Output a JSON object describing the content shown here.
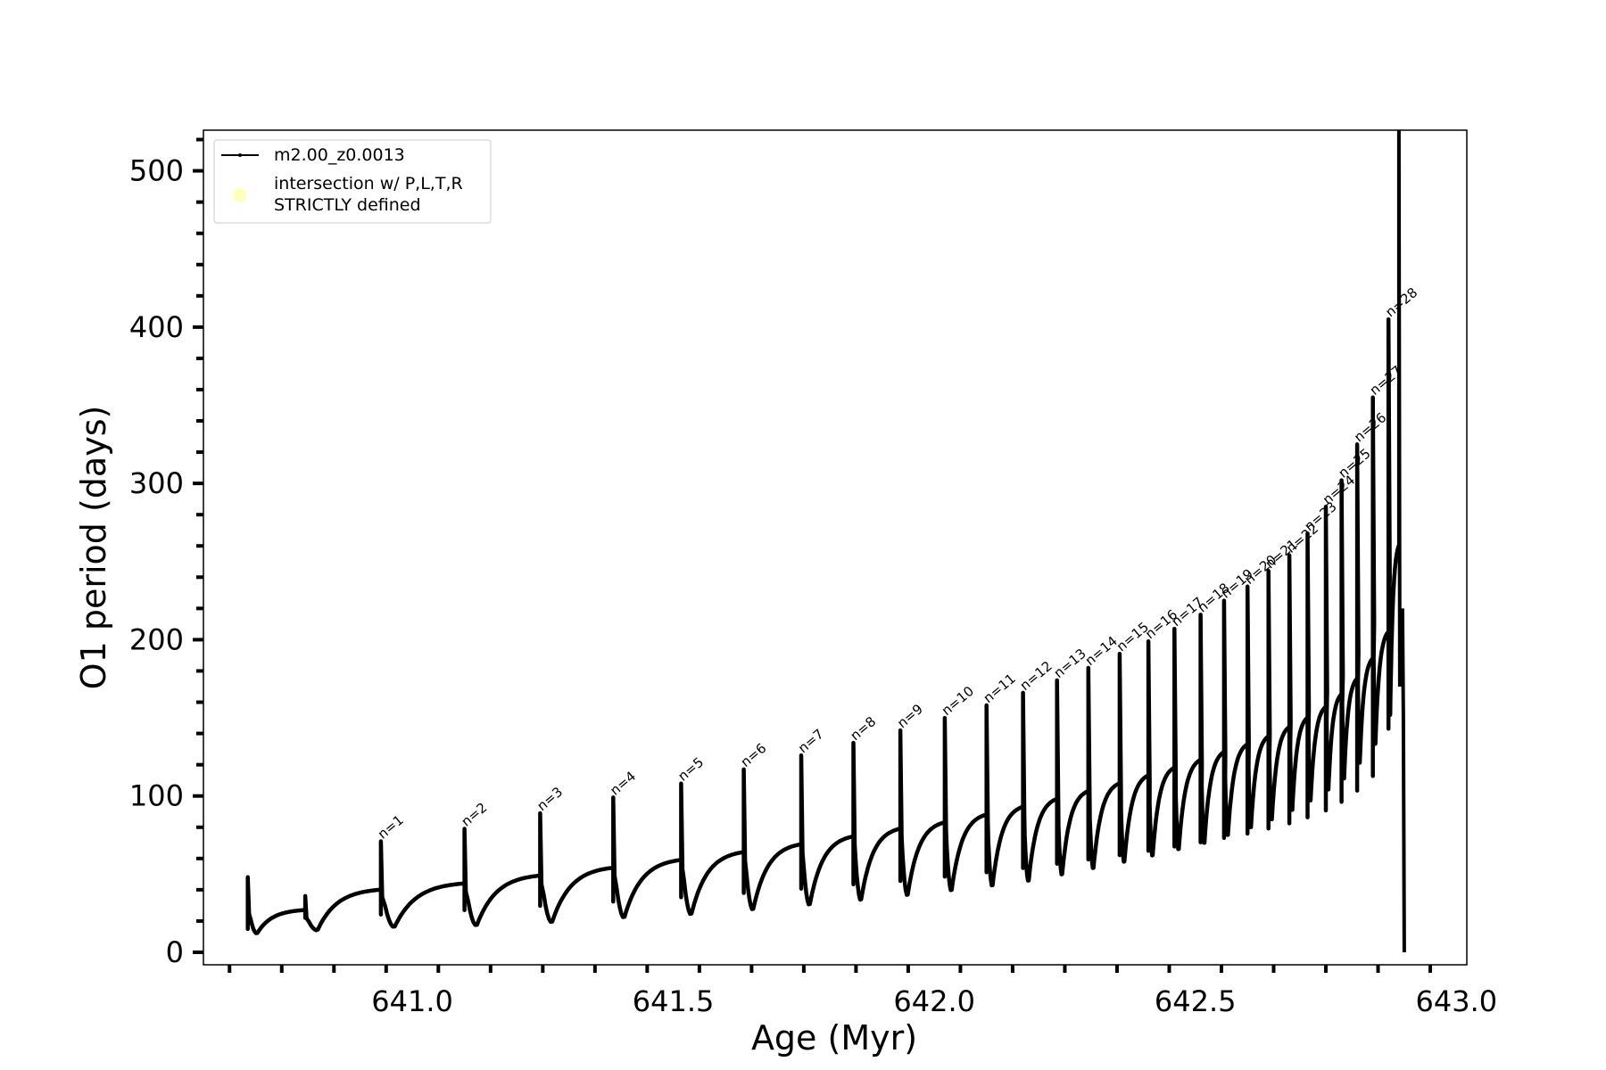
{
  "chart_data": {
    "type": "line",
    "xlabel": "Age (Myr)",
    "ylabel": "O1 period (days)",
    "xlim": [
      640.6,
      643.02
    ],
    "ylim": [
      -8,
      526
    ],
    "grid": false,
    "legend_position": "top-left",
    "x_ticks": [
      {
        "value": 641.0,
        "label": "641.0"
      },
      {
        "value": 641.5,
        "label": "641.5"
      },
      {
        "value": 642.0,
        "label": "642.0"
      },
      {
        "value": 642.5,
        "label": "642.5"
      },
      {
        "value": 643.0,
        "label": "643.0"
      }
    ],
    "y_ticks": [
      {
        "value": 0,
        "label": "0"
      },
      {
        "value": 100,
        "label": "100"
      },
      {
        "value": 200,
        "label": "200"
      },
      {
        "value": 300,
        "label": "300"
      },
      {
        "value": 400,
        "label": "400"
      },
      {
        "value": 500,
        "label": "500"
      }
    ],
    "series": [
      {
        "name": "m2.00_z0.0013",
        "color": "#000000",
        "pulses": [
          {
            "label": "",
            "x": 640.685,
            "peak": 48,
            "min": 12,
            "end": 27
          },
          {
            "label": "",
            "x": 640.795,
            "peak": 36,
            "min": 14,
            "end": 40
          },
          {
            "label": "n=1",
            "x": 640.94,
            "peak": 71,
            "min": 16,
            "end": 44
          },
          {
            "label": "n=2",
            "x": 641.1,
            "peak": 79,
            "min": 17,
            "end": 49
          },
          {
            "label": "n=3",
            "x": 641.245,
            "peak": 89,
            "min": 19,
            "end": 54
          },
          {
            "label": "n=4",
            "x": 641.385,
            "peak": 99,
            "min": 22,
            "end": 59
          },
          {
            "label": "n=5",
            "x": 641.515,
            "peak": 108,
            "min": 24,
            "end": 64
          },
          {
            "label": "n=6",
            "x": 641.635,
            "peak": 117,
            "min": 27,
            "end": 69
          },
          {
            "label": "n=7",
            "x": 641.745,
            "peak": 126,
            "min": 30,
            "end": 74
          },
          {
            "label": "n=8",
            "x": 641.845,
            "peak": 134,
            "min": 33,
            "end": 79
          },
          {
            "label": "n=9",
            "x": 641.935,
            "peak": 142,
            "min": 36,
            "end": 83
          },
          {
            "label": "n=10",
            "x": 642.02,
            "peak": 150,
            "min": 39,
            "end": 88
          },
          {
            "label": "n=11",
            "x": 642.1,
            "peak": 158,
            "min": 42,
            "end": 93
          },
          {
            "label": "n=12",
            "x": 642.17,
            "peak": 166,
            "min": 45,
            "end": 98
          },
          {
            "label": "n=13",
            "x": 642.235,
            "peak": 174,
            "min": 49,
            "end": 103
          },
          {
            "label": "n=14",
            "x": 642.295,
            "peak": 182,
            "min": 53,
            "end": 108
          },
          {
            "label": "n=15",
            "x": 642.355,
            "peak": 191,
            "min": 57,
            "end": 113
          },
          {
            "label": "n=16",
            "x": 642.41,
            "peak": 199,
            "min": 61,
            "end": 118
          },
          {
            "label": "n=17",
            "x": 642.46,
            "peak": 207,
            "min": 65,
            "end": 123
          },
          {
            "label": "n=18",
            "x": 642.51,
            "peak": 216,
            "min": 69,
            "end": 128
          },
          {
            "label": "n=19",
            "x": 642.555,
            "peak": 225,
            "min": 74,
            "end": 133
          },
          {
            "label": "n=20",
            "x": 642.6,
            "peak": 234,
            "min": 79,
            "end": 138
          },
          {
            "label": "n=21",
            "x": 642.64,
            "peak": 244,
            "min": 84,
            "end": 144
          },
          {
            "label": "n=22",
            "x": 642.68,
            "peak": 254,
            "min": 90,
            "end": 150
          },
          {
            "label": "n=23",
            "x": 642.715,
            "peak": 268,
            "min": 96,
            "end": 157
          },
          {
            "label": "n=24",
            "x": 642.75,
            "peak": 285,
            "min": 103,
            "end": 165
          },
          {
            "label": "n=25",
            "x": 642.78,
            "peak": 302,
            "min": 110,
            "end": 175
          },
          {
            "label": "n=26",
            "x": 642.81,
            "peak": 325,
            "min": 120,
            "end": 188
          },
          {
            "label": "n=27",
            "x": 642.84,
            "peak": 355,
            "min": 132,
            "end": 205
          },
          {
            "label": "n=28",
            "x": 642.87,
            "peak": 405,
            "min": 150,
            "end": 260
          }
        ],
        "final_spike": {
          "x": 642.89,
          "peak": 526,
          "drop": 0
        }
      },
      {
        "name": "intersection w/ P,L,T,R STRICTLY defined",
        "color": "#ffffc0",
        "points": []
      }
    ],
    "legend": {
      "entries": [
        {
          "line1": "m2.00_z0.0013",
          "line2": ""
        },
        {
          "line1": "intersection w/ P,L,T,R",
          "line2": "STRICTLY defined"
        }
      ]
    }
  }
}
